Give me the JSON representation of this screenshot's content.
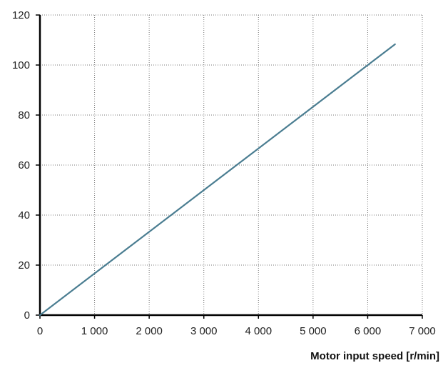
{
  "chart_data": {
    "type": "line",
    "title": "",
    "xlabel": "Motor input speed [r/min]",
    "ylabel": "",
    "xlim": [
      0,
      7000
    ],
    "ylim": [
      0,
      120
    ],
    "x_ticks": [
      0,
      1000,
      2000,
      3000,
      4000,
      5000,
      6000,
      7000
    ],
    "x_tick_labels": [
      "0",
      "1 000",
      "2 000",
      "3 000",
      "4 000",
      "5 000",
      "6 000",
      "7 000"
    ],
    "y_ticks": [
      0,
      20,
      40,
      60,
      80,
      100,
      120
    ],
    "y_tick_labels": [
      "0",
      "20",
      "40",
      "60",
      "80",
      "100",
      "120"
    ],
    "grid": true,
    "grid_style": "dotted",
    "legend": "none",
    "series": [
      {
        "color": "#4a7d91",
        "x": [
          0,
          6500
        ],
        "y": [
          0,
          108.3
        ]
      }
    ]
  }
}
